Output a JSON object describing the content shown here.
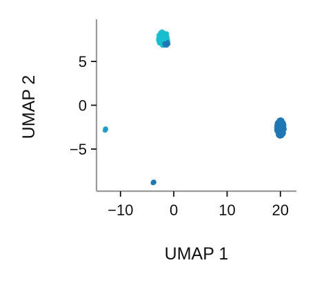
{
  "chart_data": {
    "type": "scatter",
    "xlabel": "UMAP 1",
    "ylabel": "UMAP 2",
    "xlim": [
      -14.5,
      23
    ],
    "ylim": [
      -9.8,
      9.8
    ],
    "xticks": [
      -10,
      0,
      10,
      20
    ],
    "yticks": [
      -5,
      0,
      5
    ],
    "tick_labels_x": [
      "−10",
      "0",
      "10",
      "20"
    ],
    "tick_labels_y": [
      "−5",
      "0",
      "5"
    ],
    "grid": false,
    "legend": "none",
    "clusters": [
      {
        "center": [
          -2.0,
          7.6
        ],
        "spread": [
          0.9,
          0.8
        ],
        "count": 160,
        "color": "#17becf"
      },
      {
        "center": [
          -1.4,
          7.0
        ],
        "spread": [
          0.4,
          0.25
        ],
        "count": 12,
        "color": "#1f77b4"
      },
      {
        "center": [
          20.0,
          -2.6
        ],
        "spread": [
          0.75,
          0.95
        ],
        "count": 150,
        "color": "#1f77b4"
      },
      {
        "center": [
          -12.8,
          -2.8
        ],
        "spread": [
          0.15,
          0.12
        ],
        "count": 8,
        "color": "#1f9bc4"
      },
      {
        "center": [
          -3.8,
          -8.8
        ],
        "spread": [
          0.15,
          0.1
        ],
        "count": 8,
        "color": "#1f77b4"
      }
    ]
  }
}
